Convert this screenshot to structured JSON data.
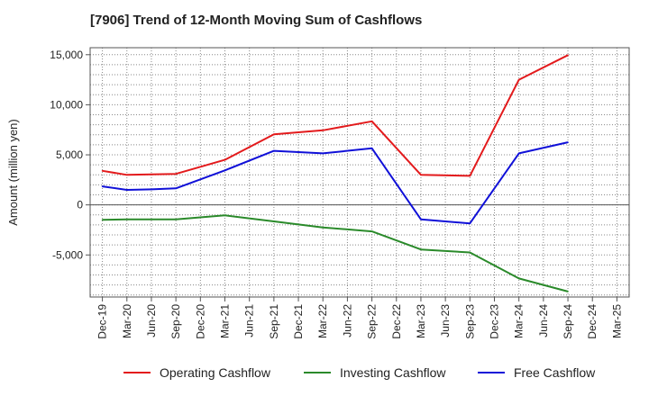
{
  "chart_data": {
    "type": "line",
    "title": "[7906]  Trend of 12-Month Moving Sum of Cashflows",
    "ylabel": "Amount (million yen)",
    "xlabel": "",
    "categories": [
      "Dec-19",
      "Mar-20",
      "Jun-20",
      "Sep-20",
      "Dec-20",
      "Mar-21",
      "Jun-21",
      "Sep-21",
      "Dec-21",
      "Mar-22",
      "Jun-22",
      "Sep-22",
      "Dec-22",
      "Mar-23",
      "Jun-23",
      "Sep-23",
      "Dec-23",
      "Mar-24",
      "Jun-24",
      "Sep-24",
      "Dec-24",
      "Mar-25"
    ],
    "ylim": [
      -9200,
      15700
    ],
    "yticks": [
      -5000,
      0,
      5000,
      10000,
      15000
    ],
    "ytick_labels": [
      "-5,000",
      "0",
      "5,000",
      "10,000",
      "15,000"
    ],
    "grid": true,
    "legend_position": "bottom",
    "series": [
      {
        "name": "Operating Cashflow",
        "color": "#e31a1c",
        "values": [
          3400,
          3000,
          3050,
          3100,
          null,
          4500,
          null,
          7050,
          null,
          7450,
          null,
          8350,
          null,
          3000,
          null,
          2900,
          null,
          12500,
          null,
          14950,
          null,
          null
        ]
      },
      {
        "name": "Investing Cashflow",
        "color": "#2a8a2a",
        "values": [
          -1500,
          -1450,
          -1450,
          -1450,
          null,
          -1050,
          null,
          -1650,
          null,
          -2250,
          null,
          -2650,
          null,
          -4450,
          null,
          -4750,
          null,
          -7350,
          null,
          -8650,
          null,
          null
        ]
      },
      {
        "name": "Free Cashflow",
        "color": "#1010d8",
        "values": [
          1850,
          1500,
          1550,
          1650,
          null,
          3450,
          null,
          5400,
          null,
          5150,
          null,
          5650,
          null,
          -1450,
          null,
          -1850,
          null,
          5150,
          null,
          6250,
          null,
          null
        ]
      }
    ]
  }
}
